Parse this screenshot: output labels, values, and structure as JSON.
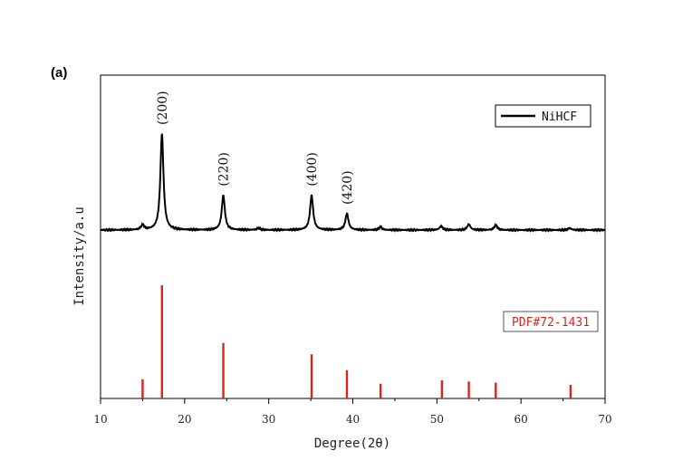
{
  "chart_data": {
    "type": "line",
    "panel_label": "(a)",
    "xlabel": "Degree(2θ)",
    "ylabel": "Intensity/a.u",
    "xlim": [
      10,
      70
    ],
    "x_ticks": [
      "10",
      "20",
      "30",
      "40",
      "50",
      "60",
      "70"
    ],
    "series": [
      {
        "name": "NiHCF",
        "color": "#000000",
        "baseline": 0,
        "peaks": [
          {
            "x": 15.0,
            "y": 0.05
          },
          {
            "x": 17.3,
            "y": 1.0
          },
          {
            "x": 24.6,
            "y": 0.36
          },
          {
            "x": 28.8,
            "y": 0.02
          },
          {
            "x": 35.1,
            "y": 0.36
          },
          {
            "x": 39.3,
            "y": 0.17
          },
          {
            "x": 43.3,
            "y": 0.03
          },
          {
            "x": 50.5,
            "y": 0.04
          },
          {
            "x": 53.8,
            "y": 0.06
          },
          {
            "x": 57.0,
            "y": 0.05
          },
          {
            "x": 65.8,
            "y": 0.02
          }
        ]
      },
      {
        "name": "PDF#72-1431",
        "color": "#d9251d",
        "x": [
          15.0,
          17.3,
          24.6,
          35.1,
          39.3,
          43.3,
          50.6,
          53.8,
          57.0,
          65.9
        ],
        "values": [
          17,
          100,
          49,
          39,
          25,
          13,
          16,
          15,
          14,
          12
        ]
      }
    ],
    "peak_labels": [
      {
        "text": "(200)",
        "x": 17.3
      },
      {
        "text": "(220)",
        "x": 24.6
      },
      {
        "text": "(400)",
        "x": 35.1
      },
      {
        "text": "(420)",
        "x": 39.3
      }
    ],
    "legend": {
      "position": "top-right",
      "label": "NiHCF"
    },
    "ref_label": "PDF#72-1431",
    "grid": false
  }
}
